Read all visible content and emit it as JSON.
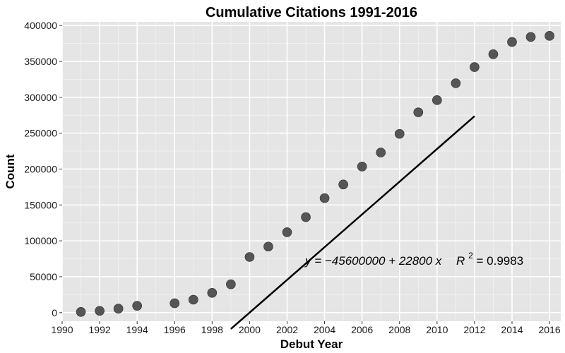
{
  "chart_data": {
    "type": "scatter",
    "title": "Cumulative Citations 1991-2016",
    "xlabel": "Debut Year",
    "ylabel": "Count",
    "xlim": [
      1990,
      2016.6
    ],
    "ylim": [
      -12000,
      405000
    ],
    "xticks": [
      1990,
      1992,
      1994,
      1996,
      1998,
      2000,
      2002,
      2004,
      2006,
      2008,
      2010,
      2012,
      2014,
      2016
    ],
    "yticks": [
      0,
      50000,
      100000,
      150000,
      200000,
      250000,
      300000,
      350000,
      400000
    ],
    "grid": true,
    "background": "#e5e5e5",
    "point_color": "#4d4d4d",
    "points": [
      {
        "x": 1991,
        "y": 1000
      },
      {
        "x": 1992,
        "y": 2500
      },
      {
        "x": 1993,
        "y": 5500
      },
      {
        "x": 1994,
        "y": 9500
      },
      {
        "x": 1996,
        "y": 13000
      },
      {
        "x": 1997,
        "y": 18000
      },
      {
        "x": 1998,
        "y": 27500
      },
      {
        "x": 1999,
        "y": 39500
      },
      {
        "x": 2000,
        "y": 77500
      },
      {
        "x": 2001,
        "y": 92000
      },
      {
        "x": 2002,
        "y": 112000
      },
      {
        "x": 2003,
        "y": 133000
      },
      {
        "x": 2004,
        "y": 159500
      },
      {
        "x": 2005,
        "y": 178500
      },
      {
        "x": 2006,
        "y": 203500
      },
      {
        "x": 2007,
        "y": 223000
      },
      {
        "x": 2008,
        "y": 249000
      },
      {
        "x": 2009,
        "y": 279000
      },
      {
        "x": 2010,
        "y": 296000
      },
      {
        "x": 2011,
        "y": 319500
      },
      {
        "x": 2012,
        "y": 342000
      },
      {
        "x": 2013,
        "y": 360000
      },
      {
        "x": 2014,
        "y": 377000
      },
      {
        "x": 2015,
        "y": 384000
      },
      {
        "x": 2016,
        "y": 385500
      }
    ],
    "fit_line": {
      "x_start": 1999,
      "x_end": 2012,
      "intercept": -45600000,
      "slope": 22800
    },
    "annotation": {
      "equation": "y = −45600000 + 22800 x",
      "r2_label": "R",
      "r2_exponent": "2",
      "r2_value": " = 0.9983"
    }
  }
}
